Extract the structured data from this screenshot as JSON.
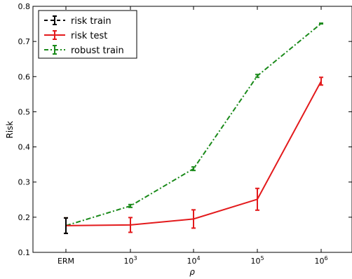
{
  "chart_data": {
    "type": "line",
    "xlabel": "ρ",
    "ylabel": "Risk",
    "ylim": [
      0.1,
      0.8
    ],
    "yticks": [
      0.1,
      0.2,
      0.3,
      0.4,
      0.5,
      0.6,
      0.7,
      0.8
    ],
    "grid": false,
    "legend_position": "top-left",
    "categories": [
      {
        "base": "ERM",
        "exp": ""
      },
      {
        "base": "10",
        "exp": "3"
      },
      {
        "base": "10",
        "exp": "4"
      },
      {
        "base": "10",
        "exp": "5"
      },
      {
        "base": "10",
        "exp": "6"
      }
    ],
    "series": [
      {
        "name": "risk train",
        "color": "#000000",
        "linestyle": "dashed",
        "values": [
          0.176,
          null,
          null,
          null,
          null
        ],
        "errors": [
          0.022,
          null,
          null,
          null,
          null
        ]
      },
      {
        "name": "risk test",
        "color": "#e31a1c",
        "linestyle": "solid",
        "values": [
          0.176,
          0.178,
          0.195,
          0.251,
          0.587
        ],
        "errors": [
          0.022,
          0.021,
          0.026,
          0.031,
          0.011
        ]
      },
      {
        "name": "robust train",
        "color": "#1a8a1a",
        "linestyle": "dashdot",
        "values": [
          0.176,
          0.232,
          0.338,
          0.602,
          0.751
        ],
        "errors": [
          0.022,
          0.004,
          0.005,
          0.004,
          0.001
        ]
      }
    ]
  }
}
